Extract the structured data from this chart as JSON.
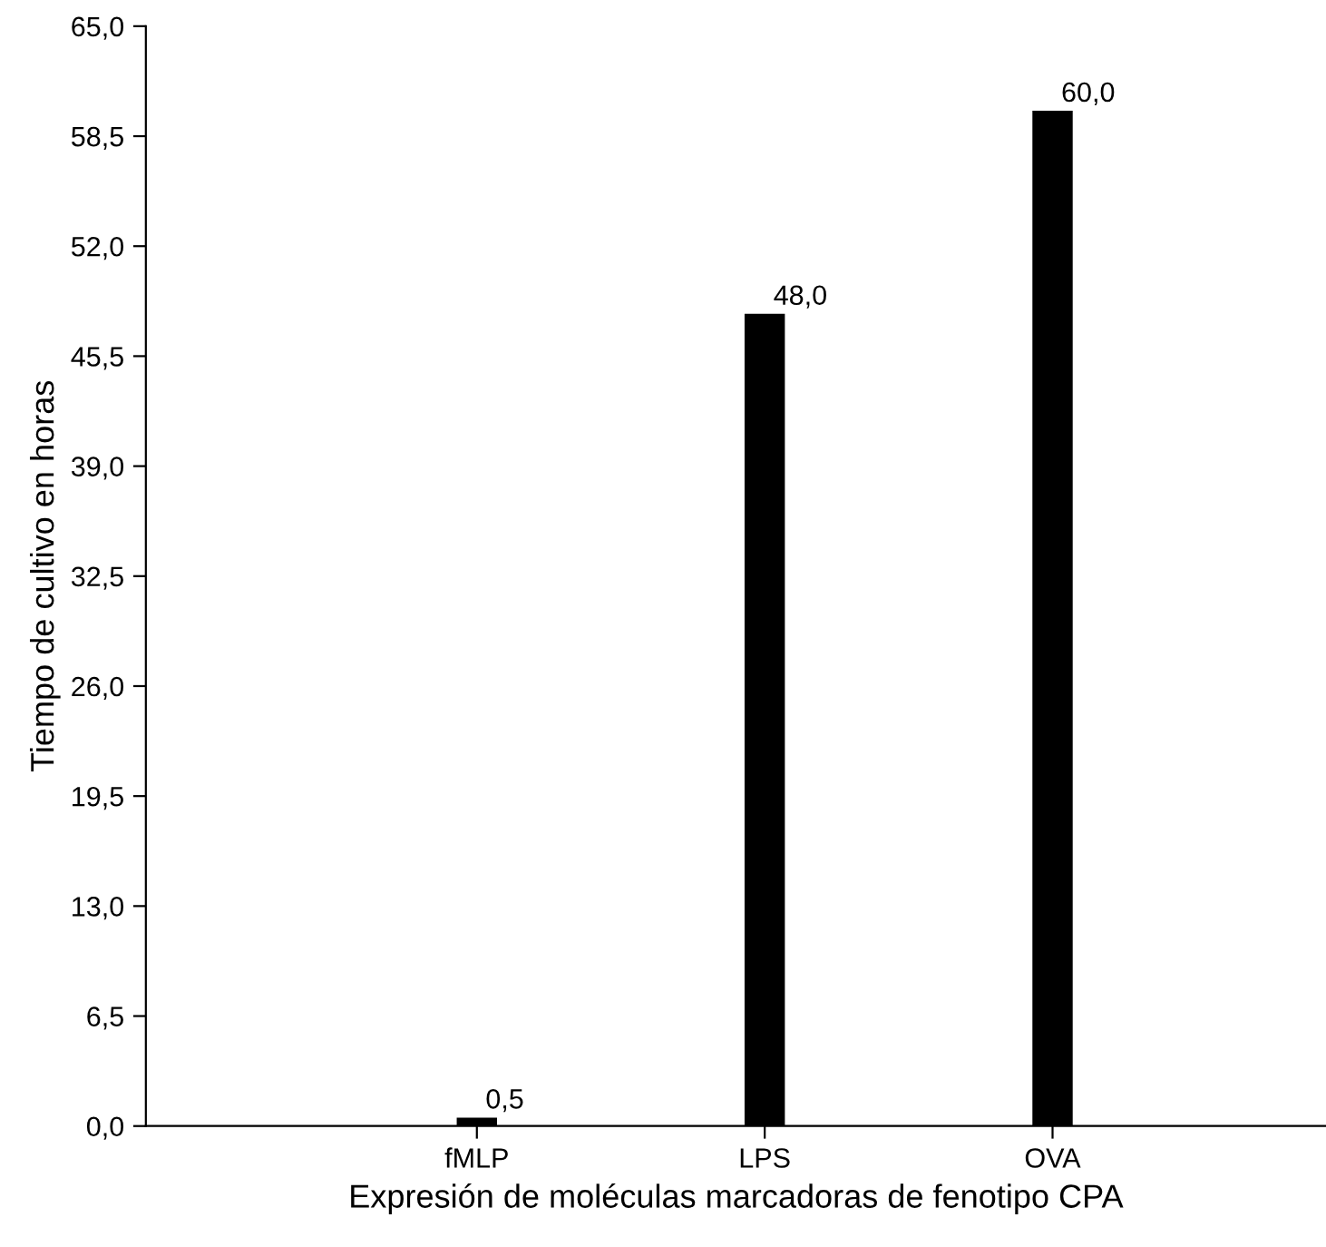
{
  "chart_data": {
    "type": "bar",
    "xlabel": "Expresión de moléculas marcadoras de fenotipo CPA",
    "ylabel": "Tiempo de cultivo en horas",
    "categories": [
      "fMLP",
      "LPS",
      "OVA"
    ],
    "values": [
      0.5,
      48.0,
      60.0
    ],
    "value_labels": [
      "0,5",
      "48,0",
      "60,0"
    ],
    "color": "#000000",
    "ylim": [
      0,
      65
    ],
    "yticks": [
      {
        "value": 0,
        "label": "0,0"
      },
      {
        "value": 6.5,
        "label": "6,5"
      },
      {
        "value": 13,
        "label": "13,0"
      },
      {
        "value": 19.5,
        "label": "19,5"
      },
      {
        "value": 26,
        "label": "26,0"
      },
      {
        "value": 32.5,
        "label": "32,5"
      },
      {
        "value": 39,
        "label": "39,0"
      },
      {
        "value": 45.5,
        "label": "45,5"
      },
      {
        "value": 52,
        "label": "52,0"
      },
      {
        "value": 58.5,
        "label": "58,5"
      },
      {
        "value": 65,
        "label": "65,0"
      }
    ],
    "grid": false,
    "legend": false
  }
}
